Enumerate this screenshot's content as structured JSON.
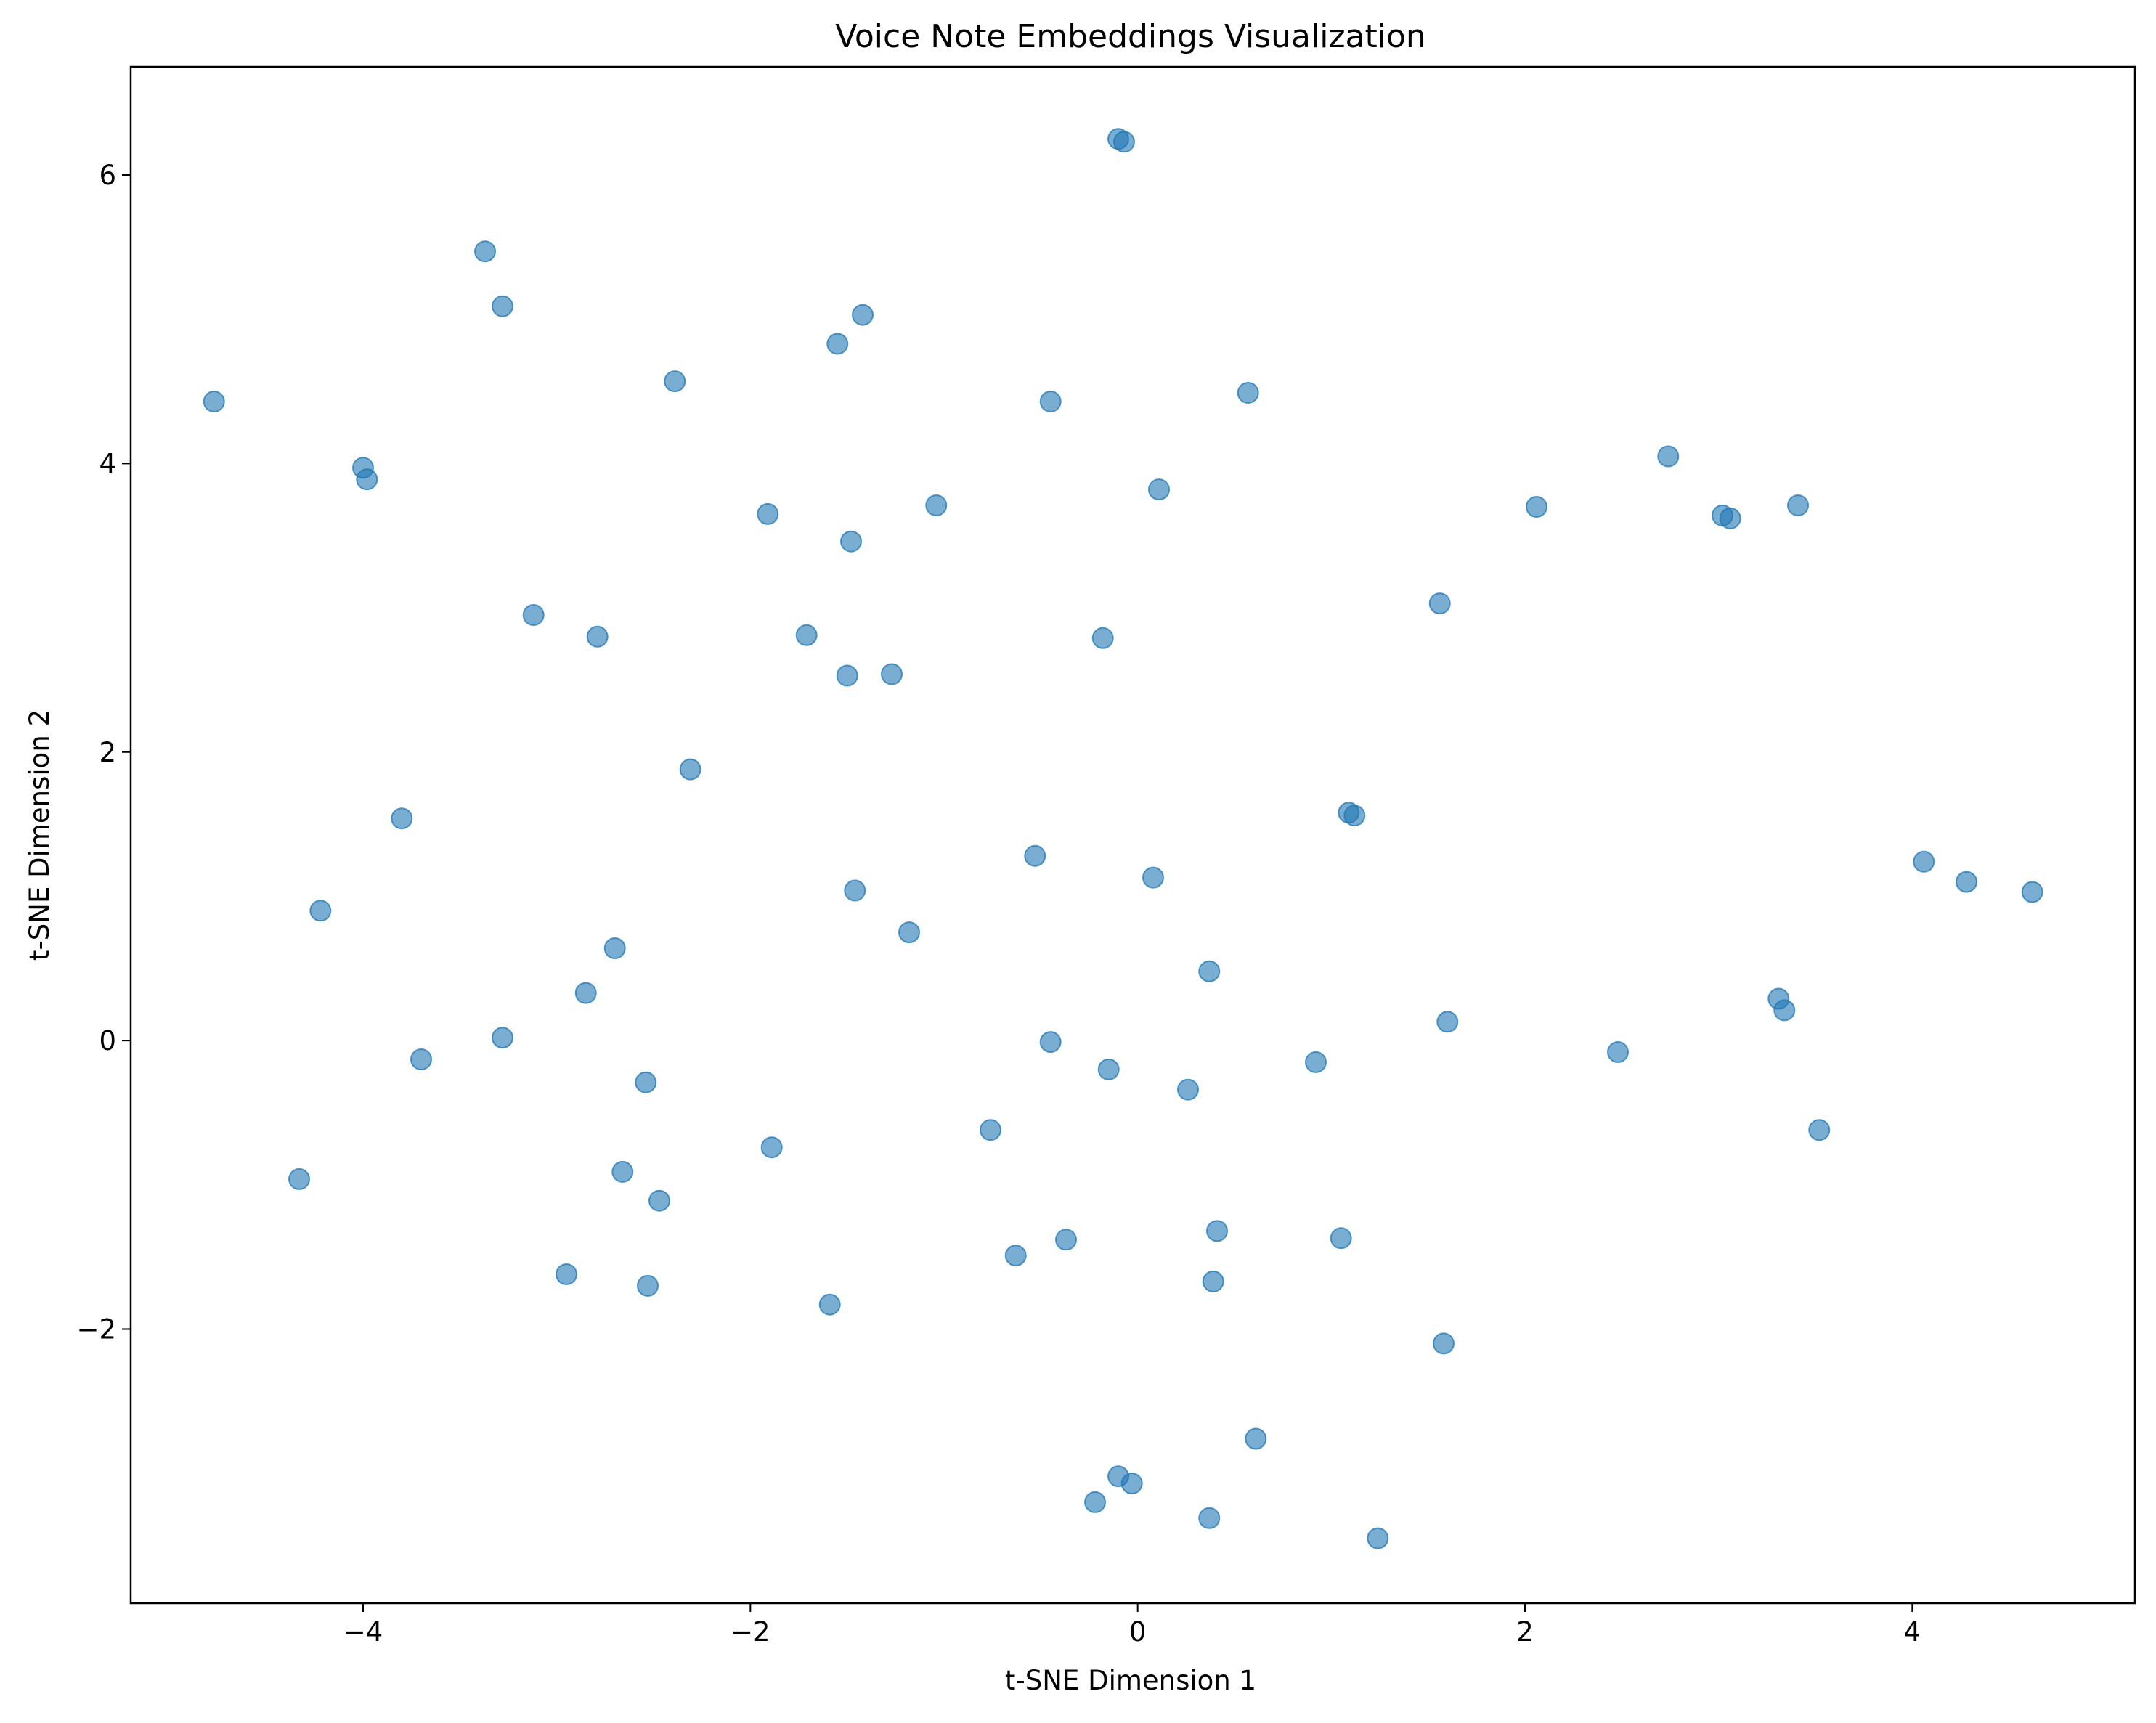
{
  "chart_data": {
    "type": "scatter",
    "title": "Voice Note Embeddings Visualization",
    "xlabel": "t-SNE Dimension 1",
    "ylabel": "t-SNE Dimension 2",
    "xlim": [
      -5.2,
      5.15
    ],
    "ylim": [
      -3.9,
      6.75
    ],
    "xticks": [
      -4,
      -2,
      0,
      2,
      4
    ],
    "yticks": [
      -2,
      0,
      2,
      4,
      6
    ],
    "xtick_labels": [
      "−4",
      "−2",
      "0",
      "2",
      "4"
    ],
    "ytick_labels": [
      "−2",
      "0",
      "2",
      "4",
      "6"
    ],
    "grid": false,
    "legend": "none",
    "marker_color": "#1f77b4",
    "marker_opacity": 0.6,
    "points": [
      {
        "x": -0.1,
        "y": 6.25
      },
      {
        "x": -0.07,
        "y": 6.23
      },
      {
        "x": -3.37,
        "y": 5.47
      },
      {
        "x": -3.28,
        "y": 5.09
      },
      {
        "x": -1.42,
        "y": 5.03
      },
      {
        "x": -1.55,
        "y": 4.83
      },
      {
        "x": -2.39,
        "y": 4.57
      },
      {
        "x": -4.77,
        "y": 4.43
      },
      {
        "x": -0.45,
        "y": 4.43
      },
      {
        "x": 0.57,
        "y": 4.49
      },
      {
        "x": -4.0,
        "y": 3.97
      },
      {
        "x": -3.98,
        "y": 3.89
      },
      {
        "x": 2.74,
        "y": 4.05
      },
      {
        "x": 0.11,
        "y": 3.82
      },
      {
        "x": -1.04,
        "y": 3.71
      },
      {
        "x": 2.06,
        "y": 3.7
      },
      {
        "x": 3.41,
        "y": 3.71
      },
      {
        "x": -1.91,
        "y": 3.65
      },
      {
        "x": 3.02,
        "y": 3.64
      },
      {
        "x": 3.06,
        "y": 3.62
      },
      {
        "x": -1.48,
        "y": 3.46
      },
      {
        "x": 1.56,
        "y": 3.03
      },
      {
        "x": -3.12,
        "y": 2.95
      },
      {
        "x": -2.79,
        "y": 2.8
      },
      {
        "x": -1.71,
        "y": 2.81
      },
      {
        "x": -0.18,
        "y": 2.79
      },
      {
        "x": -1.5,
        "y": 2.53
      },
      {
        "x": -1.27,
        "y": 2.54
      },
      {
        "x": -2.31,
        "y": 1.88
      },
      {
        "x": 1.09,
        "y": 1.58
      },
      {
        "x": 1.12,
        "y": 1.56
      },
      {
        "x": -3.8,
        "y": 1.54
      },
      {
        "x": -0.53,
        "y": 1.28
      },
      {
        "x": 4.06,
        "y": 1.24
      },
      {
        "x": 0.08,
        "y": 1.13
      },
      {
        "x": 4.28,
        "y": 1.1
      },
      {
        "x": -1.46,
        "y": 1.04
      },
      {
        "x": 4.62,
        "y": 1.03
      },
      {
        "x": -4.22,
        "y": 0.9
      },
      {
        "x": -1.18,
        "y": 0.75
      },
      {
        "x": -2.7,
        "y": 0.64
      },
      {
        "x": 0.37,
        "y": 0.48
      },
      {
        "x": -2.85,
        "y": 0.33
      },
      {
        "x": 3.31,
        "y": 0.29
      },
      {
        "x": 3.34,
        "y": 0.21
      },
      {
        "x": 1.6,
        "y": 0.13
      },
      {
        "x": -3.28,
        "y": 0.02
      },
      {
        "x": -0.45,
        "y": -0.01
      },
      {
        "x": 2.48,
        "y": -0.08
      },
      {
        "x": -3.7,
        "y": -0.13
      },
      {
        "x": 0.92,
        "y": -0.15
      },
      {
        "x": -0.15,
        "y": -0.2
      },
      {
        "x": -2.54,
        "y": -0.29
      },
      {
        "x": 0.26,
        "y": -0.34
      },
      {
        "x": -0.76,
        "y": -0.62
      },
      {
        "x": 3.52,
        "y": -0.62
      },
      {
        "x": -1.89,
        "y": -0.74
      },
      {
        "x": -2.66,
        "y": -0.91
      },
      {
        "x": -4.33,
        "y": -0.96
      },
      {
        "x": -2.47,
        "y": -1.11
      },
      {
        "x": 0.41,
        "y": -1.32
      },
      {
        "x": 1.05,
        "y": -1.37
      },
      {
        "x": -0.37,
        "y": -1.38
      },
      {
        "x": -0.63,
        "y": -1.49
      },
      {
        "x": -2.95,
        "y": -1.62
      },
      {
        "x": 0.39,
        "y": -1.67
      },
      {
        "x": -2.53,
        "y": -1.7
      },
      {
        "x": -1.59,
        "y": -1.83
      },
      {
        "x": 1.58,
        "y": -2.1
      },
      {
        "x": 0.61,
        "y": -2.76
      },
      {
        "x": -0.1,
        "y": -3.02
      },
      {
        "x": -0.03,
        "y": -3.07
      },
      {
        "x": -0.22,
        "y": -3.2
      },
      {
        "x": 0.37,
        "y": -3.31
      },
      {
        "x": 1.24,
        "y": -3.45
      }
    ]
  }
}
